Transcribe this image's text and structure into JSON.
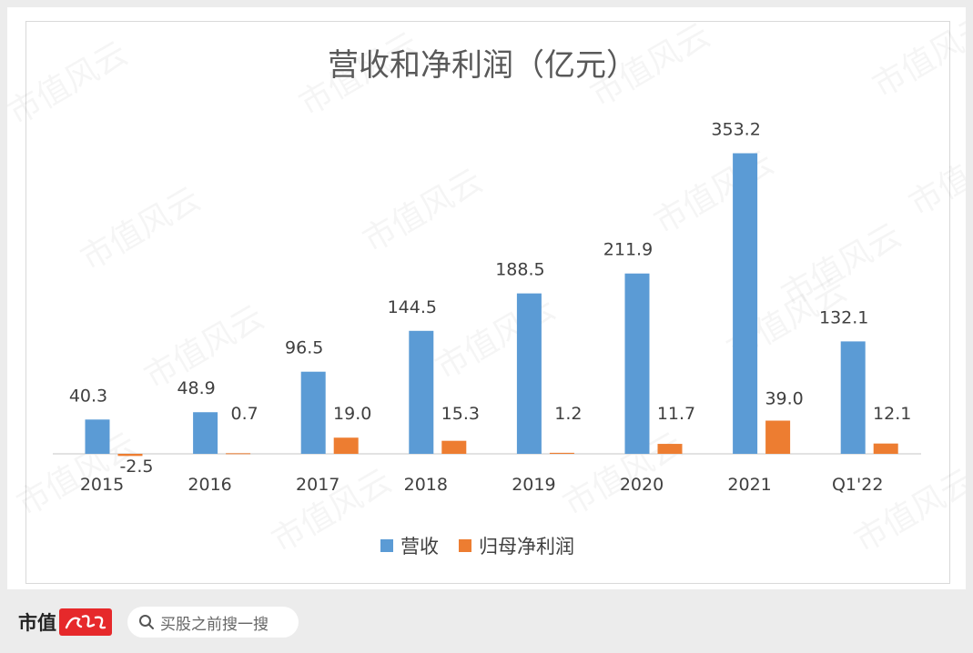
{
  "chart_data": {
    "type": "bar",
    "title": "营收和净利润（亿元）",
    "categories": [
      "2015",
      "2016",
      "2017",
      "2018",
      "2019",
      "2020",
      "2021",
      "Q1'22"
    ],
    "series": [
      {
        "name": "营收",
        "color": "#5b9bd5",
        "values": [
          40.3,
          48.9,
          96.5,
          144.5,
          188.5,
          211.9,
          353.2,
          132.1
        ]
      },
      {
        "name": "归母净利润",
        "color": "#ed7d31",
        "values": [
          -2.5,
          0.7,
          19.0,
          15.3,
          1.2,
          11.7,
          39.0,
          12.1
        ]
      }
    ],
    "data_labels": [
      [
        "40.3",
        "48.9",
        "96.5",
        "144.5",
        "188.5",
        "211.9",
        "353.2",
        "132.1"
      ],
      [
        "-2.5",
        "0.7",
        "19.0",
        "15.3",
        "1.2",
        "11.7",
        "39.0",
        "12.1"
      ]
    ],
    "ylim": [
      -5,
      400
    ],
    "grid": false,
    "legend_position": "bottom"
  },
  "watermark_text": "市值风云",
  "footer": {
    "brand_text": "市值",
    "brand_logo_text": "风云",
    "search_icon": "search-icon",
    "search_text": "买股之前搜一搜"
  }
}
